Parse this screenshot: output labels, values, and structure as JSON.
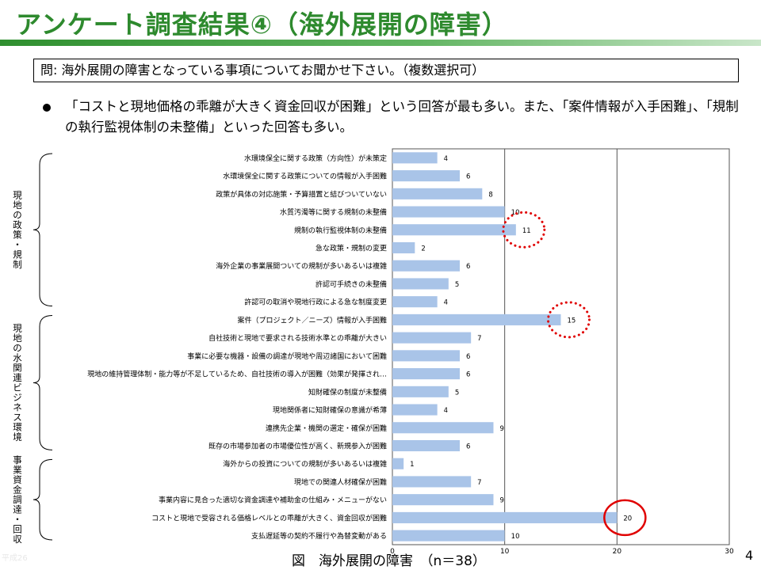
{
  "header": {
    "title": "アンケート調査結果④（海外展開の障害）"
  },
  "question": "問: 海外展開の障害となっている事項についてお聞かせ下さい。（複数選択可）",
  "summary": "「コストと現地価格の乖離が大きく資金回収が困難」という回答が最も多い。また、「案件情報が入手困難」、「規制の執行監視体制の未整備」といった回答も多い。",
  "caption": "図　海外展開の障害　（n＝38）",
  "page_number": "4",
  "footer_faint": "平成26",
  "groups": [
    {
      "label": "現地の政策・規制"
    },
    {
      "label": "現地の水関連ビジネス環境"
    },
    {
      "label": "事業資金調達・回収"
    }
  ],
  "chart_data": {
    "type": "bar",
    "orientation": "horizontal",
    "title": "",
    "xlabel": "",
    "ylabel": "",
    "xlim": [
      0,
      30
    ],
    "xticks": [
      "0",
      "10",
      "20",
      "30"
    ],
    "grid": true,
    "legend": "none",
    "bar_color": "#a9c4e8",
    "highlight_color": "#e00000",
    "categories": [
      "水環境保全に関する政策（方向性）が未策定",
      "水環境保全に関する政策についての情報が入手困難",
      "政策が具体の対応施策・予算措置と結びついていない",
      "水質汚濁等に関する規制の未整備",
      "規制の執行監視体制の未整備",
      "急な政策・規制の変更",
      "海外企業の事業展開ついての規制が多いあるいは複雑",
      "許認可手続きの未整備",
      "許認可の取消や現地行政による急な制度変更",
      "案件（プロジェクト／ニーズ）情報が入手困難",
      "自社技術と現地で要求される技術水準との乖離が大きい",
      "事業に必要な機器・設備の調達が現地や周辺諸国において困難",
      "現地の維持管理体制・能力等が不足しているため、自社技術の導入が困難（効果が発揮され…",
      "知財確保の制度が未整備",
      "現地関係者に知財確保の意識が希薄",
      "連携先企業・機関の選定・確保が困難",
      "既存の市場参加者の市場優位性が高く、新規参入が困難",
      "海外からの投資についての規制が多いあるいは複雑",
      "現地での関連人材確保が困難",
      "事業内容に見合った適切な資金調達や補助金の仕組み・メニューがない",
      "コストと現地で受容される価格レベルとの乖離が大きく、資金回収が困難",
      "支払遅延等の契約不履行や為替変動がある"
    ],
    "values": [
      4,
      6,
      8,
      10,
      11,
      2,
      6,
      5,
      4,
      15,
      7,
      6,
      6,
      5,
      4,
      9,
      6,
      1,
      7,
      9,
      20,
      10
    ],
    "highlighted": [
      {
        "index": 4,
        "style": "dotted-circle"
      },
      {
        "index": 9,
        "style": "dotted-circle"
      },
      {
        "index": 20,
        "style": "solid-circle"
      }
    ]
  }
}
